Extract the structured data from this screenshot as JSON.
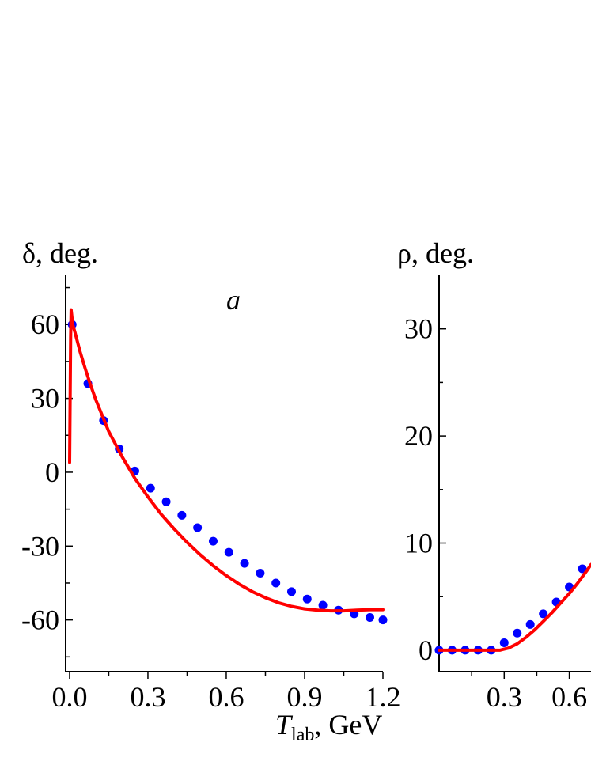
{
  "colors": {
    "points": "#0000ff",
    "curve": "#ff0000",
    "axis": "#000000"
  },
  "chart_data": [
    {
      "type": "scatter",
      "panel_label": "a",
      "title": "",
      "ylabel": "δ, deg.",
      "xlabel_main": "T",
      "xlabel_sub": "lab",
      "xlabel_rest": ", GeV",
      "xlim": [
        -0.015,
        1.2
      ],
      "ylim": [
        -81,
        80
      ],
      "xticks": [
        0.0,
        0.3,
        0.6,
        0.9,
        1.2
      ],
      "xtick_labels": [
        "0.0",
        "0.3",
        "0.6",
        "0.9",
        "1.2"
      ],
      "yticks": [
        60,
        30,
        0,
        -30,
        -60
      ],
      "ytick_labels": [
        "60",
        "30",
        "0",
        "-30",
        "-60"
      ],
      "series": [
        {
          "kind": "points",
          "x": [
            0.01,
            0.07,
            0.13,
            0.19,
            0.25,
            0.31,
            0.37,
            0.43,
            0.49,
            0.55,
            0.61,
            0.67,
            0.73,
            0.79,
            0.85,
            0.91,
            0.97,
            1.03,
            1.09,
            1.15,
            1.2
          ],
          "y": [
            60,
            36,
            21,
            9.5,
            0.5,
            -6.5,
            -12,
            -17.5,
            -22.5,
            -28,
            -32.5,
            -37,
            -41,
            -45,
            -48.5,
            -51.5,
            -54,
            -56,
            -57.5,
            -59,
            -60
          ]
        },
        {
          "kind": "curve",
          "x": [
            0.0,
            0.002,
            0.004,
            0.006,
            0.008,
            0.012,
            0.02,
            0.04,
            0.06,
            0.08,
            0.1,
            0.15,
            0.2,
            0.25,
            0.3,
            0.35,
            0.4,
            0.45,
            0.5,
            0.55,
            0.6,
            0.65,
            0.7,
            0.75,
            0.8,
            0.85,
            0.9,
            0.95,
            1.0,
            1.05,
            1.1,
            1.15,
            1.2
          ],
          "y": [
            4,
            28,
            55,
            66,
            64,
            60,
            57,
            49,
            42,
            35.5,
            29.5,
            16.5,
            6.5,
            -2.5,
            -10,
            -17,
            -23,
            -28.5,
            -33.5,
            -38,
            -42,
            -45.5,
            -48.5,
            -51,
            -53,
            -54.5,
            -55.5,
            -56,
            -56.3,
            -56.3,
            -56,
            -55.8,
            -55.8
          ]
        }
      ]
    },
    {
      "type": "scatter",
      "title": "",
      "ylabel": "ρ, deg.",
      "xlim": [
        0.0,
        0.7
      ],
      "ylim": [
        -2,
        35
      ],
      "xticks": [
        0.3,
        0.6
      ],
      "xtick_labels": [
        "0.3",
        "0.6"
      ],
      "yticks": [
        0,
        10,
        20,
        30
      ],
      "ytick_labels": [
        "0",
        "10",
        "20",
        "30"
      ],
      "series": [
        {
          "kind": "points",
          "x": [
            0.0,
            0.06,
            0.12,
            0.18,
            0.24,
            0.3,
            0.36,
            0.42,
            0.48,
            0.54,
            0.6,
            0.66
          ],
          "y": [
            0,
            0,
            0,
            0,
            0,
            0.7,
            1.6,
            2.4,
            3.4,
            4.5,
            5.9,
            7.6
          ]
        },
        {
          "kind": "curve",
          "x": [
            0.0,
            0.1,
            0.2,
            0.28,
            0.32,
            0.36,
            0.4,
            0.44,
            0.48,
            0.52,
            0.56,
            0.6,
            0.64,
            0.68,
            0.7
          ],
          "y": [
            0,
            0,
            0,
            0,
            0.2,
            0.6,
            1.2,
            1.9,
            2.7,
            3.5,
            4.4,
            5.3,
            6.3,
            7.4,
            8
          ]
        }
      ]
    }
  ]
}
